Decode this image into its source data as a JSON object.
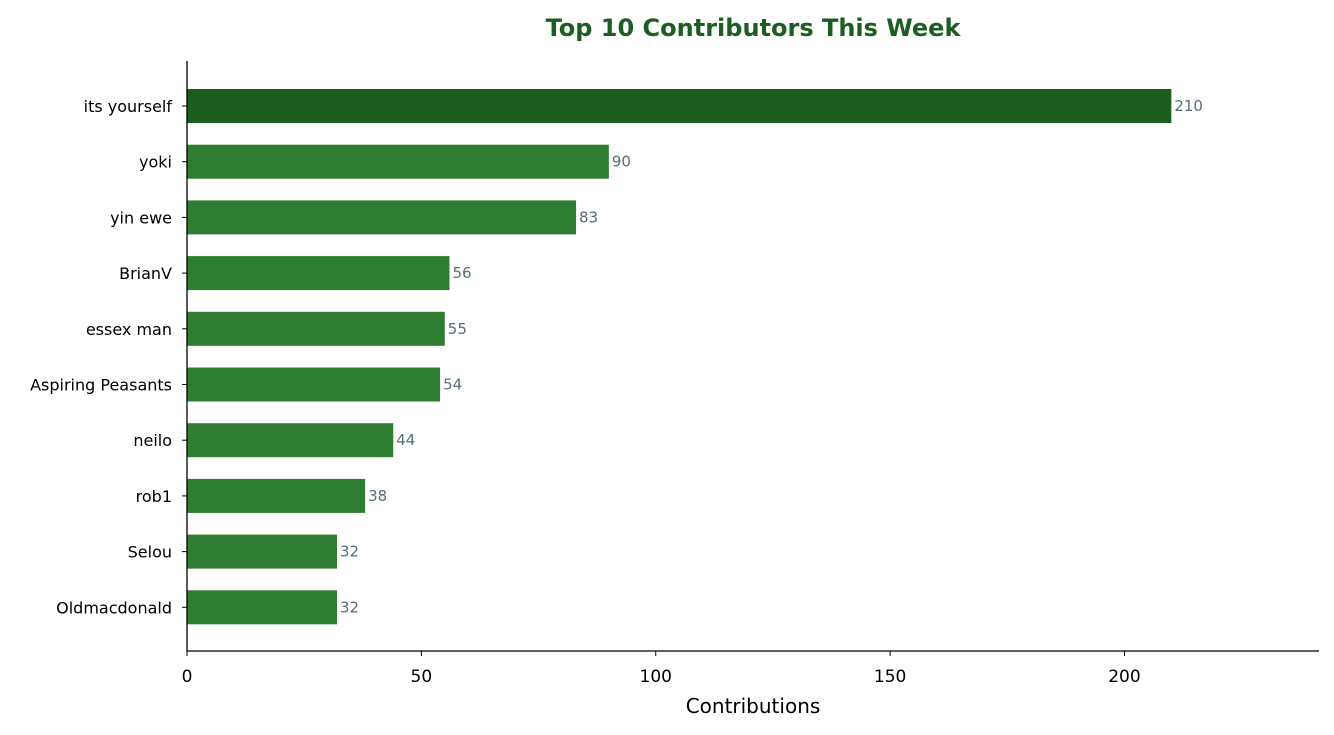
{
  "chart_data": {
    "type": "bar",
    "orientation": "horizontal",
    "title": "Top 10 Contributors This Week",
    "xlabel": "Contributions",
    "ylabel": "",
    "categories": [
      "its yourself",
      "yoki",
      "yin ewe",
      "BrianV",
      "essex man",
      "Aspiring Peasants",
      "neilo",
      "rob1",
      "Selou",
      "Oldmacdonald"
    ],
    "values": [
      210,
      90,
      83,
      56,
      55,
      54,
      44,
      38,
      32,
      32
    ],
    "xlim": [
      0,
      241.5
    ],
    "xticks": [
      0,
      50,
      100,
      150,
      200
    ],
    "grid": false,
    "legend": "none",
    "highlight_index": 0
  },
  "colors": {
    "title": "#1b5e20",
    "bar_highlight": "#1b5e20",
    "bar_default": "#2e7d32",
    "data_label": "#546e7a",
    "axis": "#000000"
  }
}
